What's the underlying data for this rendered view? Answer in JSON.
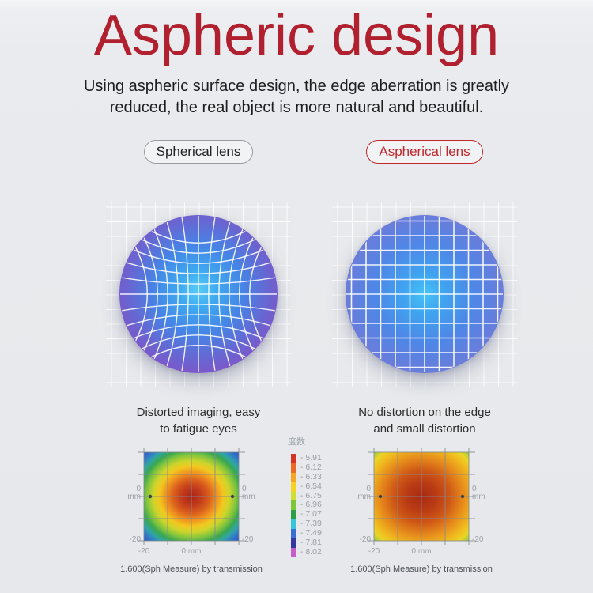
{
  "header": {
    "title": "Aspheric design",
    "subtitle_line1": "Using aspheric surface design, the edge aberration is greatly",
    "subtitle_line2": "reduced, the real object is more natural and beautiful."
  },
  "comparison": {
    "spherical": {
      "badge": "Spherical lens",
      "caption_line1": "Distorted imaging, easy",
      "caption_line2": "to fatigue eyes"
    },
    "aspherical": {
      "badge": "Aspherical lens",
      "caption_line1": "No distortion on the edge",
      "caption_line2": "and small distortion"
    }
  },
  "measurement": {
    "legend": {
      "title": "度数",
      "entries": [
        {
          "label": "- 5.91",
          "color": "#d43427"
        },
        {
          "label": "- 6.12",
          "color": "#e96c26"
        },
        {
          "label": "- 6.33",
          "color": "#f3a723"
        },
        {
          "label": "- 6.54",
          "color": "#f4d323"
        },
        {
          "label": "- 6.75",
          "color": "#cfe032"
        },
        {
          "label": "- 6.96",
          "color": "#7cc838"
        },
        {
          "label": "- 7.07",
          "color": "#2f9e4a"
        },
        {
          "label": "- 7.39",
          "color": "#36c6da"
        },
        {
          "label": "- 7.49",
          "color": "#3a6ed2"
        },
        {
          "label": "- 7.81",
          "color": "#35389e"
        },
        {
          "label": "- 8.02",
          "color": "#c45fc9"
        }
      ]
    },
    "left_plot": {
      "axis_left_value": "0",
      "axis_left_unit": "mm",
      "axis_right_value": "0",
      "axis_right_unit": "mm",
      "axis_left_bottom": "-20",
      "axis_right_bottom": "-20",
      "axis_bottom_left": "-20",
      "axis_bottom_center": "0 mm",
      "caption": "1.600(Sph Measure) by transmission"
    },
    "right_plot": {
      "axis_left_value": "0",
      "axis_left_unit": "mm",
      "axis_right_value": "0",
      "axis_right_unit": "mm",
      "axis_left_bottom": "-20",
      "axis_right_bottom": "-20",
      "axis_bottom_left": "-20",
      "axis_bottom_center": "0 mm",
      "caption": "1.600(Sph Measure) by transmission"
    }
  },
  "colors": {
    "title_red": "#b1202e",
    "badge_red": "#c1262c",
    "badge_gray_border": "#989ca0",
    "lens_left_gradient": "#59ccf8 0%, #3faaf0 16%, #4585e6 38%, #6a64d0 62%, #8a4ec6 82%, #9346c1 100%",
    "lens_right_gradient": "#47c4f6 0%, #3fa4f0 18%, #4f86e6 45%, #6c7cda 72%, #7e78d8 100%",
    "heatmap_left_gradient": "#a82318 0%, #c03a1b 14%, #da5f1d 27%, #f0931f 38%, #f2c81f 48%, #cdd52c 57%, #7fc43e 67%, #3aa74f 75%, #2fa5a5 83%, #3277cb 91%, #2b57bd 100%",
    "heatmap_right_gradient": "#a82a12 0%, #b93a14 22%, #ce5716 42%, #e68a1c 62%, #f0bb1e 80%, #ecd426 90%, #accd3c 97%, #6cbb4a 100%"
  }
}
